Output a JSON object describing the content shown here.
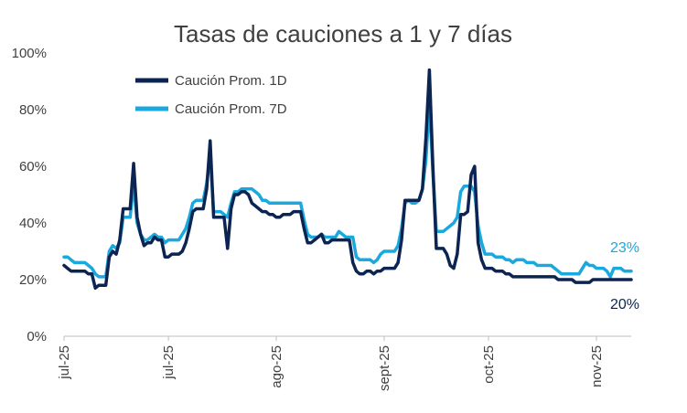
{
  "chart_data": {
    "type": "line",
    "title": "Tasas de cauciones a 1 y 7 días",
    "xlabel": "",
    "ylabel": "",
    "ylim": [
      0,
      100
    ],
    "yticks": [
      "0%",
      "20%",
      "40%",
      "60%",
      "80%",
      "100%"
    ],
    "ytick_values": [
      0,
      20,
      40,
      60,
      80,
      100
    ],
    "xticks": [
      {
        "label": "jul-25",
        "index": 0
      },
      {
        "label": "jul-25",
        "index": 30
      },
      {
        "label": "ago-25",
        "index": 61
      },
      {
        "label": "sept-25",
        "index": 92
      },
      {
        "label": "oct-25",
        "index": 122
      },
      {
        "label": "nov-25",
        "index": 153
      }
    ],
    "grid": false,
    "legend": "top-left",
    "series": [
      {
        "name": "Caución Prom. 1D",
        "color": "#0b2452",
        "end_label": "20%",
        "values": [
          25,
          24,
          23,
          23,
          23,
          23,
          23,
          22,
          22,
          17,
          18,
          18,
          18,
          28,
          30,
          29,
          34,
          45,
          45,
          45,
          61,
          42,
          36,
          32,
          33,
          33,
          35,
          34,
          34,
          28,
          28,
          29,
          29,
          29,
          30,
          33,
          38,
          44,
          45,
          45,
          45,
          52,
          69,
          42,
          42,
          42,
          42,
          31,
          45,
          50,
          50,
          51,
          51,
          50,
          47,
          46,
          45,
          44,
          44,
          43,
          43,
          42,
          42,
          43,
          43,
          43,
          44,
          44,
          44,
          38,
          33,
          33,
          34,
          35,
          36,
          33,
          33,
          34,
          34,
          34,
          34,
          34,
          34,
          26,
          23,
          22,
          22,
          23,
          23,
          22,
          23,
          23,
          24,
          24,
          24,
          24,
          26,
          34,
          48,
          48,
          48,
          48,
          48,
          52,
          70,
          94,
          60,
          31,
          31,
          31,
          29,
          25,
          24,
          29,
          43,
          43,
          44,
          57,
          60,
          33,
          27,
          24,
          24,
          24,
          23,
          23,
          23,
          22,
          22,
          21,
          21,
          21,
          21,
          21,
          21,
          21,
          21,
          21,
          21,
          21,
          21,
          21,
          20,
          20,
          20,
          20,
          20,
          19,
          19,
          19,
          19,
          19,
          20,
          20,
          20,
          20,
          20,
          20,
          20,
          20,
          20,
          20,
          20,
          20
        ]
      },
      {
        "name": "Caución Prom. 7D",
        "color": "#1aa9de",
        "end_label": "23%",
        "values": [
          28,
          28,
          27,
          26,
          26,
          26,
          26,
          25,
          24,
          22,
          21,
          21,
          21,
          30,
          32,
          31,
          33,
          42,
          42,
          42,
          54,
          40,
          36,
          34,
          34,
          35,
          36,
          35,
          35,
          33,
          34,
          34,
          34,
          34,
          36,
          38,
          42,
          47,
          48,
          48,
          48,
          54,
          64,
          44,
          44,
          44,
          43,
          42,
          47,
          51,
          51,
          52,
          52,
          52,
          52,
          51,
          50,
          48,
          48,
          47,
          47,
          47,
          47,
          47,
          47,
          47,
          47,
          47,
          47,
          41,
          36,
          35,
          35,
          35,
          36,
          35,
          35,
          35,
          35,
          37,
          36,
          35,
          35,
          35,
          28,
          27,
          27,
          27,
          27,
          26,
          27,
          29,
          30,
          30,
          30,
          30,
          32,
          38,
          47,
          48,
          47,
          47,
          48,
          52,
          62,
          83,
          58,
          37,
          37,
          37,
          38,
          39,
          40,
          42,
          51,
          53,
          53,
          53,
          51,
          39,
          33,
          29,
          29,
          29,
          28,
          28,
          28,
          27,
          27,
          26,
          27,
          27,
          27,
          26,
          26,
          26,
          25,
          25,
          25,
          25,
          25,
          24,
          23,
          22,
          22,
          22,
          22,
          22,
          22,
          24,
          26,
          25,
          25,
          24,
          24,
          24,
          23,
          21,
          24,
          24,
          24,
          23,
          23,
          23
        ]
      }
    ]
  }
}
